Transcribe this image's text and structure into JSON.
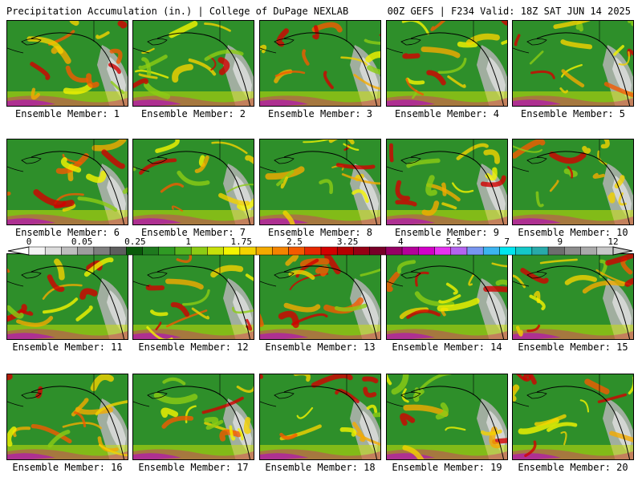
{
  "header": {
    "left": "Precipitation Accumulation (in.) | College of DuPage NEXLAB",
    "right": "00Z GEFS | F234 Valid: 18Z SAT JUN 14 2025"
  },
  "panels": [
    {
      "label": "Ensemble Member: 1"
    },
    {
      "label": "Ensemble Member: 2"
    },
    {
      "label": "Ensemble Member: 3"
    },
    {
      "label": "Ensemble Member: 4"
    },
    {
      "label": "Ensemble Member: 5"
    },
    {
      "label": "Ensemble Member: 6"
    },
    {
      "label": "Ensemble Member: 7"
    },
    {
      "label": "Ensemble Member: 8"
    },
    {
      "label": "Ensemble Member: 9"
    },
    {
      "label": "Ensemble Member: 10"
    },
    {
      "label": "Ensemble Member: 11"
    },
    {
      "label": "Ensemble Member: 12"
    },
    {
      "label": "Ensemble Member: 13"
    },
    {
      "label": "Ensemble Member: 14"
    },
    {
      "label": "Ensemble Member: 15"
    },
    {
      "label": "Ensemble Member: 16"
    },
    {
      "label": "Ensemble Member: 17"
    },
    {
      "label": "Ensemble Member: 18"
    },
    {
      "label": "Ensemble Member: 19"
    },
    {
      "label": "Ensemble Member: 20"
    }
  ],
  "legend": {
    "tick_labels": [
      "0",
      "0.05",
      "0.25",
      "1",
      "1.75",
      "2.5",
      "3.25",
      "4",
      "5.5",
      "7",
      "9",
      "12"
    ],
    "colors": [
      "#f4f4f4",
      "#dcdcdc",
      "#bebebe",
      "#9e9e9e",
      "#7e7e7e",
      "#5e5e5e",
      "#0a5a0a",
      "#1e7a1e",
      "#2f9a24",
      "#56b41e",
      "#8ccc14",
      "#c8e00a",
      "#f4f400",
      "#f4d200",
      "#f4aa00",
      "#f48400",
      "#f45a00",
      "#e62800",
      "#d20000",
      "#b40000",
      "#960014",
      "#780028",
      "#960064",
      "#b4009a",
      "#d200c8",
      "#e632f0",
      "#b464f0",
      "#7896f0",
      "#3cb4f0",
      "#00e6f0",
      "#14c8c8",
      "#28aaaa",
      "#6e6e6e",
      "#8c8c8c",
      "#aaaaaa",
      "#c8c8c8"
    ]
  }
}
